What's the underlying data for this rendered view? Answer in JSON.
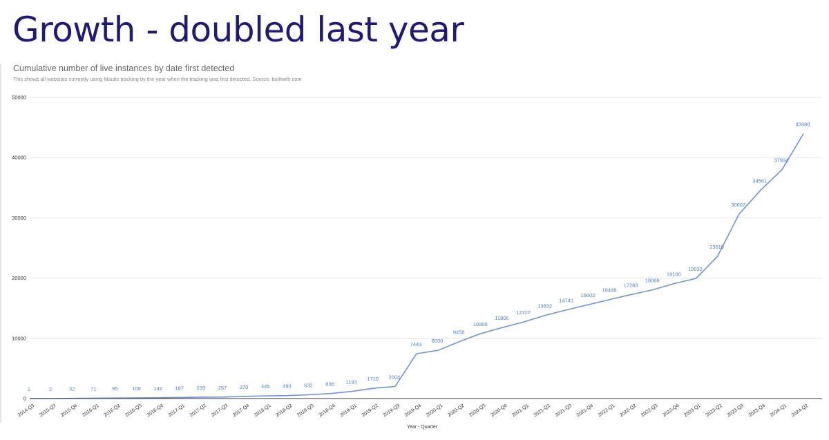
{
  "slide": {
    "title": "Growth - doubled last year"
  },
  "chart_data": {
    "type": "line",
    "title": "Cumulative number of live instances by date first detected",
    "subtitle": "This shows all websites currently using Mautic tracking by the year when the tracking was first detected. Source: builtwith.com",
    "xlabel": "Year - Quarter",
    "ylabel": "",
    "ylim": [
      0,
      50000
    ],
    "yticks": [
      0,
      10000,
      20000,
      30000,
      40000,
      50000
    ],
    "grid": true,
    "legend": "none",
    "line_color": "#6b93e0",
    "categories": [
      "2014-Q3",
      "2015-Q3",
      "2015-Q4",
      "2016-Q1",
      "2016-Q2",
      "2016-Q3",
      "2016-Q4",
      "2017-Q1",
      "2017-Q2",
      "2017-Q3",
      "2017-Q4",
      "2018-Q1",
      "2018-Q2",
      "2018-Q3",
      "2018-Q4",
      "2019-Q1",
      "2019-Q2",
      "2019-Q3",
      "2019-Q4",
      "2020-Q1",
      "2020-Q2",
      "2020-Q3",
      "2020-Q4",
      "2021-Q1",
      "2021-Q2",
      "2021-Q3",
      "2021-Q4",
      "2022-Q1",
      "2022-Q2",
      "2022-Q3",
      "2022-Q4",
      "2023-Q1",
      "2023-Q2",
      "2023-Q3",
      "2023-Q4",
      "2024-Q1",
      "2024-Q2"
    ],
    "values": [
      1,
      2,
      32,
      71,
      95,
      109,
      142,
      187,
      239,
      257,
      370,
      445,
      490,
      632,
      836,
      1193,
      1710,
      2004,
      7443,
      8000,
      9456,
      10806,
      11806,
      12727,
      13832,
      14741,
      15602,
      16448,
      17283,
      18066,
      19100,
      19932,
      23610,
      30607,
      34561,
      37994,
      43980
    ]
  }
}
